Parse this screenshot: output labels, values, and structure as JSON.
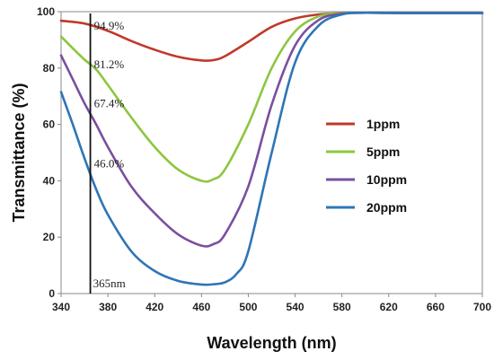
{
  "chart_data": {
    "type": "line",
    "title": "",
    "xlabel": "Wavelength (nm)",
    "ylabel": "Transmittance (%)",
    "xlim": [
      340,
      700
    ],
    "ylim": [
      0,
      100
    ],
    "xticks": [
      340,
      380,
      420,
      460,
      500,
      540,
      580,
      620,
      660,
      700
    ],
    "yticks": [
      0,
      20,
      40,
      60,
      80,
      100
    ],
    "grid": false,
    "legend_position": "right",
    "series": [
      {
        "name": "1ppm",
        "color": "#c0392b",
        "x": [
          340,
          360,
          380,
          400,
          420,
          440,
          460,
          470,
          480,
          500,
          520,
          540,
          560,
          580,
          600,
          640,
          700
        ],
        "y": [
          96.8,
          95.8,
          93.2,
          89.6,
          86.5,
          84.0,
          82.7,
          82.8,
          84.2,
          89.3,
          94.6,
          97.6,
          99.0,
          99.5,
          99.6,
          99.5,
          99.5
        ]
      },
      {
        "name": "5ppm",
        "color": "#8dc63f",
        "x": [
          340,
          350,
          360,
          370,
          380,
          400,
          420,
          440,
          460,
          470,
          480,
          500,
          520,
          540,
          560,
          580,
          600,
          640,
          700
        ],
        "y": [
          91.2,
          87.0,
          83.0,
          79.5,
          74.0,
          62.5,
          52.0,
          44.0,
          40.0,
          40.5,
          44.0,
          60.0,
          80.0,
          93.0,
          98.3,
          99.5,
          99.6,
          99.5,
          99.5
        ]
      },
      {
        "name": "10ppm",
        "color": "#7a4f9e",
        "x": [
          340,
          350,
          360,
          370,
          380,
          400,
          420,
          440,
          460,
          470,
          480,
          500,
          520,
          540,
          560,
          580,
          600,
          640,
          700
        ],
        "y": [
          84.5,
          76.0,
          67.5,
          60.0,
          52.0,
          38.0,
          28.5,
          21.0,
          17.0,
          17.5,
          21.0,
          38.0,
          67.0,
          88.0,
          97.0,
          99.3,
          99.6,
          99.5,
          99.5
        ]
      },
      {
        "name": "20ppm",
        "color": "#2e75b6",
        "x": [
          340,
          350,
          360,
          370,
          380,
          400,
          420,
          440,
          460,
          470,
          480,
          490,
          500,
          520,
          540,
          560,
          580,
          600,
          640,
          700
        ],
        "y": [
          71.5,
          60.0,
          48.0,
          37.0,
          28.0,
          15.0,
          8.0,
          4.5,
          3.2,
          3.3,
          4.0,
          7.0,
          15.0,
          50.0,
          82.0,
          95.0,
          99.0,
          99.6,
          99.5,
          99.5
        ]
      }
    ],
    "reference_line": {
      "x": 365,
      "label": "365nm"
    },
    "annotations": [
      {
        "text": "94.9%",
        "x": 365,
        "y": 94.9
      },
      {
        "text": "81.2%",
        "x": 365,
        "y": 81.2
      },
      {
        "text": "67.4%",
        "x": 365,
        "y": 67.4
      },
      {
        "text": "46.0%",
        "x": 365,
        "y": 46.0
      }
    ]
  }
}
